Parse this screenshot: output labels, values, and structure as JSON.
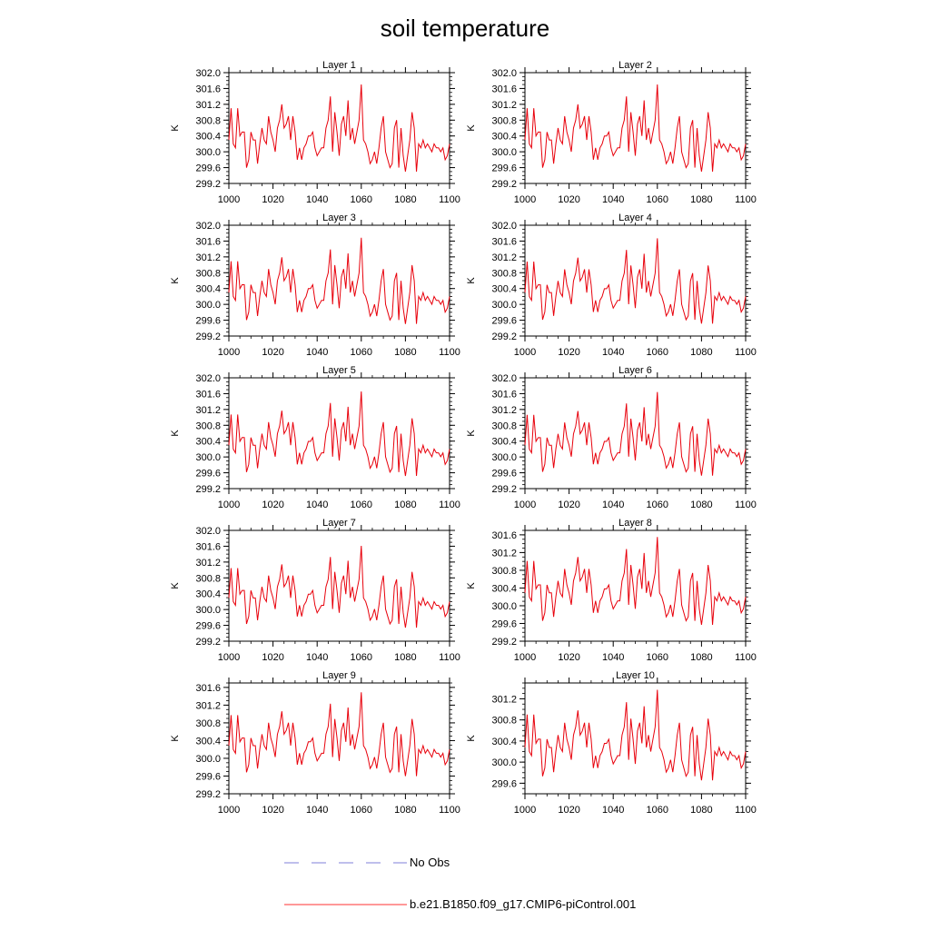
{
  "figure": {
    "title": "soil temperature"
  },
  "legend": {
    "items": [
      {
        "label": "No Obs",
        "color": "#7f7fd8",
        "style": "dashed"
      },
      {
        "label": "b.e21.B1850.f09_g17.CMIP6-piControl.001",
        "color": "#ff3030",
        "style": "solid"
      }
    ]
  },
  "series_color": "#e8000b",
  "chart_data": {
    "type": "line",
    "x": [
      1000,
      1001,
      1002,
      1003,
      1004,
      1005,
      1006,
      1007,
      1008,
      1009,
      1010,
      1011,
      1012,
      1013,
      1014,
      1015,
      1016,
      1017,
      1018,
      1019,
      1020,
      1021,
      1022,
      1023,
      1024,
      1025,
      1026,
      1027,
      1028,
      1029,
      1030,
      1031,
      1032,
      1033,
      1034,
      1035,
      1036,
      1037,
      1038,
      1039,
      1040,
      1041,
      1042,
      1043,
      1044,
      1045,
      1046,
      1047,
      1048,
      1049,
      1050,
      1051,
      1052,
      1053,
      1054,
      1055,
      1056,
      1057,
      1058,
      1059,
      1060,
      1061,
      1062,
      1063,
      1064,
      1065,
      1066,
      1067,
      1068,
      1069,
      1070,
      1071,
      1072,
      1073,
      1074,
      1075,
      1076,
      1077,
      1078,
      1079,
      1080,
      1081,
      1082,
      1083,
      1084,
      1085,
      1086,
      1087,
      1088,
      1089,
      1090,
      1091,
      1092,
      1093,
      1094,
      1095,
      1096,
      1097,
      1098,
      1099,
      1100
    ],
    "xlim": [
      1000,
      1100
    ],
    "xticks": [
      1000,
      1020,
      1040,
      1060,
      1080,
      1100
    ],
    "ylabel": "K",
    "panels": [
      {
        "title": "Layer 1",
        "ylim": [
          299.2,
          302.0
        ],
        "yticks": [
          "302.0",
          "301.6",
          "301.2",
          "300.8",
          "300.4",
          "300.0",
          "299.6",
          "299.2"
        ],
        "offset": 0,
        "scale": 1.0
      },
      {
        "title": "Layer 2",
        "ylim": [
          299.2,
          302.0
        ],
        "yticks": [
          "302.0",
          "301.6",
          "301.2",
          "300.8",
          "300.4",
          "300.0",
          "299.6",
          "299.2"
        ],
        "offset": 0,
        "scale": 1.0
      },
      {
        "title": "Layer 3",
        "ylim": [
          299.2,
          302.0
        ],
        "yticks": [
          "302.0",
          "301.6",
          "301.2",
          "300.8",
          "300.4",
          "300.0",
          "299.6",
          "299.2"
        ],
        "offset": 0,
        "scale": 0.99
      },
      {
        "title": "Layer 4",
        "ylim": [
          299.2,
          302.0
        ],
        "yticks": [
          "302.0",
          "301.6",
          "301.2",
          "300.8",
          "300.4",
          "300.0",
          "299.6",
          "299.2"
        ],
        "offset": 0,
        "scale": 0.98
      },
      {
        "title": "Layer 5",
        "ylim": [
          299.2,
          302.0
        ],
        "yticks": [
          "302.0",
          "301.6",
          "301.2",
          "300.8",
          "300.4",
          "300.0",
          "299.6",
          "299.2"
        ],
        "offset": 0,
        "scale": 0.97
      },
      {
        "title": "Layer 6",
        "ylim": [
          299.2,
          302.0
        ],
        "yticks": [
          "302.0",
          "301.6",
          "301.2",
          "300.8",
          "300.4",
          "300.0",
          "299.6",
          "299.2"
        ],
        "offset": 0,
        "scale": 0.96
      },
      {
        "title": "Layer 7",
        "ylim": [
          299.2,
          302.0
        ],
        "yticks": [
          "302.0",
          "301.6",
          "301.2",
          "300.8",
          "300.4",
          "300.0",
          "299.6",
          "299.2"
        ],
        "offset": 0,
        "scale": 0.94
      },
      {
        "title": "Layer 8",
        "ylim": [
          299.2,
          301.7
        ],
        "yticks": [
          "301.6",
          "301.2",
          "300.8",
          "300.4",
          "300.0",
          "299.6",
          "299.2"
        ],
        "offset": 0,
        "scale": 0.9
      },
      {
        "title": "Layer 9",
        "ylim": [
          299.2,
          301.7
        ],
        "yticks": [
          "301.6",
          "301.2",
          "300.8",
          "300.4",
          "300.0",
          "299.6",
          "299.2"
        ],
        "offset": 0,
        "scale": 0.86
      },
      {
        "title": "Layer 10",
        "ylim": [
          299.4,
          301.5
        ],
        "yticks": [
          "301.2",
          "300.8",
          "300.4",
          "300.0",
          "299.6"
        ],
        "offset": 0,
        "scale": 0.78
      }
    ],
    "base_values": [
      300.3,
      301.1,
      300.2,
      300.1,
      301.1,
      300.4,
      300.5,
      300.5,
      299.6,
      299.8,
      300.5,
      300.3,
      300.3,
      299.7,
      300.2,
      300.6,
      300.3,
      300.2,
      300.9,
      300.5,
      300.3,
      300.0,
      300.6,
      300.8,
      301.2,
      300.6,
      300.7,
      300.9,
      300.3,
      300.9,
      300.5,
      299.8,
      300.1,
      299.8,
      300.1,
      300.2,
      300.4,
      300.4,
      300.5,
      300.1,
      299.9,
      300.0,
      300.1,
      300.1,
      300.6,
      300.8,
      301.4,
      300.0,
      301.0,
      300.5,
      299.9,
      300.7,
      300.9,
      300.4,
      301.3,
      300.3,
      300.6,
      300.2,
      300.5,
      300.8,
      301.7,
      300.3,
      300.2,
      300.0,
      299.7,
      299.8,
      300.0,
      299.7,
      300.1,
      300.6,
      300.9,
      300.0,
      299.8,
      299.6,
      299.7,
      300.6,
      300.8,
      299.6,
      300.6,
      299.9,
      299.5,
      299.9,
      300.3,
      301.0,
      300.6,
      299.5,
      300.2,
      300.1,
      300.3,
      300.1,
      300.2,
      300.1,
      300.0,
      300.2,
      300.1,
      300.1,
      300.0,
      300.1,
      299.8,
      299.9,
      300.2
    ]
  }
}
